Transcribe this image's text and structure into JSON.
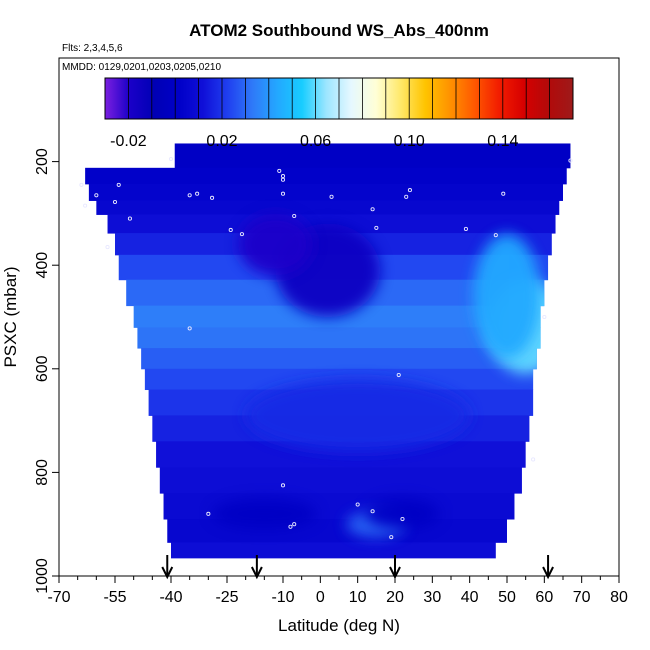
{
  "chart_data": {
    "type": "heatmap",
    "title": "ATOM2 Southbound WS_Abs_400nm",
    "flights_label": "Flts: 2,3,4,5,6",
    "dates_label": "MMDD: 0129,0201,0203,0205,0210",
    "xlabel": "Latitude (deg N)",
    "ylabel": "PSXC (mbar)",
    "xlim": [
      -70,
      80
    ],
    "ylim": [
      1000,
      0
    ],
    "x_ticks": [
      -70,
      -55,
      -40,
      -25,
      -10,
      0,
      10,
      20,
      30,
      40,
      50,
      60,
      70,
      80
    ],
    "x_tick_labels": [
      "-70",
      "-55",
      "-40",
      "-25",
      "-10",
      "0",
      "10",
      "20",
      "30",
      "40",
      "50",
      "60",
      "70",
      "80"
    ],
    "y_ticks": [
      200,
      400,
      600,
      800,
      1000
    ],
    "y_tick_labels": [
      "200",
      "400",
      "600",
      "800",
      "1000"
    ],
    "colorbar": {
      "min": -0.03,
      "max": 0.17,
      "tick_values": [
        -0.02,
        0.02,
        0.06,
        0.1,
        0.14
      ],
      "tick_labels": [
        "-0.02",
        "0.02",
        "0.06",
        "0.10",
        "0.14"
      ],
      "colors": [
        "#7b1fe0",
        "#1a00c8",
        "#0000b5",
        "#0000c8",
        "#1010d8",
        "#2040f0",
        "#2f7af8",
        "#23a8ff",
        "#18cdff",
        "#9ee6ff",
        "#e6f8ff",
        "#ffffd6",
        "#ffe86a",
        "#ffc400",
        "#ff9200",
        "#ff5800",
        "#f21c00",
        "#d60000",
        "#b20a0a",
        "#9e1a1a"
      ]
    },
    "arrows_x": [
      -41,
      -17,
      20,
      61
    ],
    "bands": [
      {
        "p_top": 165,
        "p_bot": 212,
        "x_min": -39,
        "x_max": 67,
        "value": 0.0
      },
      {
        "p_top": 212,
        "p_bot": 243,
        "x_min": -63,
        "x_max": 66,
        "value": 0.002
      },
      {
        "p_top": 243,
        "p_bot": 275,
        "x_min": -62,
        "x_max": 65,
        "value": 0.004
      },
      {
        "p_top": 275,
        "p_bot": 302,
        "x_min": -60,
        "x_max": 64,
        "value": 0.006
      },
      {
        "p_top": 302,
        "p_bot": 338,
        "x_min": -57,
        "x_max": 63,
        "value": 0.01
      },
      {
        "p_top": 338,
        "p_bot": 380,
        "x_min": -55,
        "x_max": 62,
        "value": 0.016
      },
      {
        "p_top": 380,
        "p_bot": 428,
        "x_min": -54,
        "x_max": 61,
        "value": 0.024
      },
      {
        "p_top": 428,
        "p_bot": 478,
        "x_min": -52,
        "x_max": 60,
        "value": 0.03
      },
      {
        "p_top": 478,
        "p_bot": 520,
        "x_min": -50,
        "x_max": 59,
        "value": 0.034
      },
      {
        "p_top": 520,
        "p_bot": 560,
        "x_min": -49,
        "x_max": 59,
        "value": 0.032
      },
      {
        "p_top": 560,
        "p_bot": 600,
        "x_min": -48,
        "x_max": 58,
        "value": 0.028
      },
      {
        "p_top": 600,
        "p_bot": 640,
        "x_min": -47,
        "x_max": 57,
        "value": 0.024
      },
      {
        "p_top": 640,
        "p_bot": 690,
        "x_min": -46,
        "x_max": 57,
        "value": 0.02
      },
      {
        "p_top": 690,
        "p_bot": 740,
        "x_min": -45,
        "x_max": 56,
        "value": 0.016
      },
      {
        "p_top": 740,
        "p_bot": 790,
        "x_min": -44,
        "x_max": 55,
        "value": 0.012
      },
      {
        "p_top": 790,
        "p_bot": 840,
        "x_min": -43,
        "x_max": 54,
        "value": 0.01
      },
      {
        "p_top": 840,
        "p_bot": 890,
        "x_min": -42,
        "x_max": 52,
        "value": 0.008
      },
      {
        "p_top": 890,
        "p_bot": 935,
        "x_min": -41,
        "x_max": 50,
        "value": 0.006
      },
      {
        "p_top": 935,
        "p_bot": 965,
        "x_min": -40,
        "x_max": 47,
        "value": 0.01
      }
    ],
    "blobs": [
      {
        "lat": 2,
        "p": 410,
        "rx": 14,
        "rp": 90,
        "value": -0.016
      },
      {
        "lat": -12,
        "p": 360,
        "rx": 10,
        "rp": 60,
        "value": -0.02
      },
      {
        "lat": 55,
        "p": 520,
        "rx": 10,
        "rp": 90,
        "value": 0.06
      },
      {
        "lat": 50,
        "p": 460,
        "rx": 9,
        "rp": 120,
        "value": 0.044
      },
      {
        "lat": 10,
        "p": 690,
        "rx": 30,
        "rp": 70,
        "value": 0.018
      },
      {
        "lat": -15,
        "p": 880,
        "rx": 14,
        "rp": 30,
        "value": 0.0
      },
      {
        "lat": 15,
        "p": 900,
        "rx": 8,
        "rp": 25,
        "value": 0.03
      },
      {
        "lat": 22,
        "p": 880,
        "rx": 10,
        "rp": 30,
        "value": 0.0
      }
    ],
    "points": [
      {
        "lat": -40,
        "p": 195
      },
      {
        "lat": -64,
        "p": 245
      },
      {
        "lat": -63,
        "p": 285
      },
      {
        "lat": -60,
        "p": 265
      },
      {
        "lat": -54,
        "p": 245
      },
      {
        "lat": -55,
        "p": 278
      },
      {
        "lat": -51,
        "p": 310
      },
      {
        "lat": -57,
        "p": 365
      },
      {
        "lat": -35,
        "p": 265
      },
      {
        "lat": -33,
        "p": 262
      },
      {
        "lat": -29,
        "p": 270
      },
      {
        "lat": -24,
        "p": 332
      },
      {
        "lat": -21,
        "p": 340
      },
      {
        "lat": -11,
        "p": 218
      },
      {
        "lat": -10,
        "p": 228
      },
      {
        "lat": -10,
        "p": 235
      },
      {
        "lat": -10,
        "p": 262
      },
      {
        "lat": -7,
        "p": 305
      },
      {
        "lat": 3,
        "p": 268
      },
      {
        "lat": 14,
        "p": 292
      },
      {
        "lat": 15,
        "p": 328
      },
      {
        "lat": 23,
        "p": 268
      },
      {
        "lat": 24,
        "p": 255
      },
      {
        "lat": 39,
        "p": 330
      },
      {
        "lat": 47,
        "p": 342
      },
      {
        "lat": 49,
        "p": 262
      },
      {
        "lat": 67,
        "p": 198
      },
      {
        "lat": 60,
        "p": 500
      },
      {
        "lat": -35,
        "p": 522
      },
      {
        "lat": 21,
        "p": 612
      },
      {
        "lat": 57,
        "p": 775
      },
      {
        "lat": -10,
        "p": 825
      },
      {
        "lat": 10,
        "p": 862
      },
      {
        "lat": 14,
        "p": 875
      },
      {
        "lat": -30,
        "p": 880
      },
      {
        "lat": -8,
        "p": 905
      },
      {
        "lat": -7,
        "p": 900
      },
      {
        "lat": 22,
        "p": 890
      },
      {
        "lat": 19,
        "p": 925
      }
    ]
  }
}
